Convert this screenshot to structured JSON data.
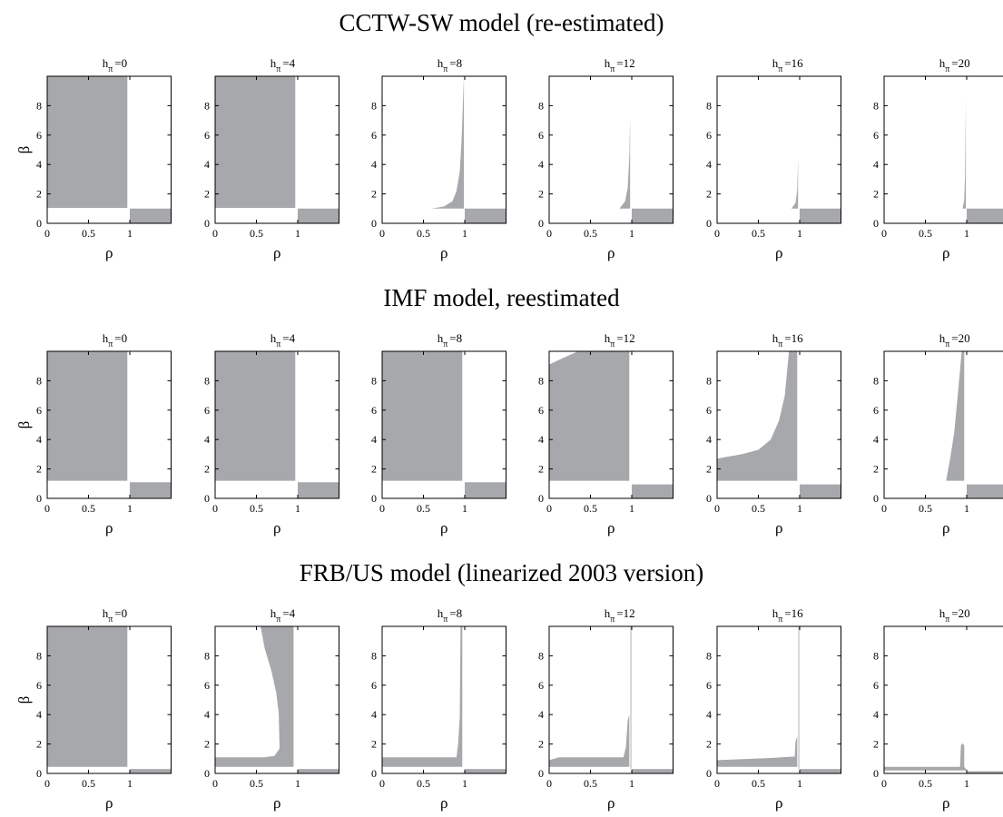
{
  "figure": {
    "rows": [
      {
        "title": "CCTW-SW model (re-estimated)"
      },
      {
        "title": "IMF model, reestimated"
      },
      {
        "title": "FRB/US model (linearized 2003 version)"
      }
    ],
    "region_color": "#a7a8ab"
  },
  "chart_data": {
    "type": "area",
    "description_of_values": "Shaded region of (rho, beta) parameter space for each model and inflation horizon h_pi",
    "xlabel": "ρ",
    "ylabel": "β",
    "xlim": [
      0,
      1.5
    ],
    "ylim": [
      0,
      10
    ],
    "xticks": [
      0,
      0.5,
      1
    ],
    "xtick_labels": [
      "0",
      "0.5",
      "1"
    ],
    "yticks": [
      0,
      2,
      4,
      6,
      8
    ],
    "ytick_labels": [
      "0",
      "2",
      "4",
      "6",
      "8"
    ],
    "grid": false,
    "panels": [
      {
        "row": 0,
        "model": "CCTW-SW model (re-estimated)",
        "h_pi": "0",
        "regions": [
          {
            "x": [
              0,
              0.97,
              0.97,
              0
            ],
            "y": [
              1.05,
              1.05,
              10,
              10
            ]
          },
          {
            "x": [
              1.0,
              1.5,
              1.5,
              1.0
            ],
            "y": [
              0,
              0,
              1.0,
              1.0
            ]
          }
        ]
      },
      {
        "row": 0,
        "model": "CCTW-SW model (re-estimated)",
        "h_pi": "4",
        "regions": [
          {
            "x": [
              0,
              0.97,
              0.97,
              0
            ],
            "y": [
              1.05,
              1.05,
              10,
              10
            ]
          },
          {
            "x": [
              1.0,
              1.5,
              1.5,
              1.0
            ],
            "y": [
              0,
              0,
              1.0,
              1.0
            ]
          }
        ]
      },
      {
        "row": 0,
        "model": "CCTW-SW model (re-estimated)",
        "h_pi": "8",
        "regions": [
          {
            "x": [
              0,
              0.6,
              0.75,
              0.85,
              0.9,
              0.94,
              0.96,
              0.98,
              0.99,
              0.99
            ],
            "y": [
              1.0,
              1.0,
              1.15,
              1.5,
              2.2,
              3.5,
              5.5,
              8.5,
              10,
              1.0
            ]
          },
          {
            "x": [
              1.0,
              1.5,
              1.5,
              1.0
            ],
            "y": [
              0,
              0,
              1.0,
              1.0
            ]
          }
        ]
      },
      {
        "row": 0,
        "model": "CCTW-SW model (re-estimated)",
        "h_pi": "12",
        "regions": [
          {
            "x": [
              0.85,
              0.92,
              0.95,
              0.97,
              0.98,
              0.98
            ],
            "y": [
              1.0,
              1.5,
              2.4,
              4.5,
              7.2,
              1.0
            ]
          },
          {
            "x": [
              1.0,
              1.5,
              1.5,
              1.0
            ],
            "y": [
              0,
              0,
              1.0,
              1.0
            ]
          }
        ]
      },
      {
        "row": 0,
        "model": "CCTW-SW model (re-estimated)",
        "h_pi": "16",
        "regions": [
          {
            "x": [
              0.9,
              0.95,
              0.97,
              0.98,
              0.98
            ],
            "y": [
              1.0,
              1.4,
              2.3,
              4.4,
              1.0
            ]
          },
          {
            "x": [
              1.0,
              1.5,
              1.5,
              1.0
            ],
            "y": [
              0,
              0,
              1.0,
              1.0
            ]
          }
        ]
      },
      {
        "row": 0,
        "model": "CCTW-SW model (re-estimated)",
        "h_pi": "20",
        "regions": [
          {
            "x": [
              0.95,
              0.97,
              0.98,
              0.99,
              0.99
            ],
            "y": [
              1.0,
              1.6,
              3.2,
              8.5,
              1.0
            ]
          },
          {
            "x": [
              1.0,
              1.5,
              1.5,
              1.0
            ],
            "y": [
              0,
              0,
              1.0,
              1.0
            ]
          }
        ]
      },
      {
        "row": 1,
        "model": "IMF model, reestimated",
        "h_pi": "0",
        "regions": [
          {
            "x": [
              0,
              0.97,
              0.97,
              0
            ],
            "y": [
              1.2,
              1.2,
              10,
              10
            ]
          },
          {
            "x": [
              1.0,
              1.5,
              1.5,
              1.0
            ],
            "y": [
              0,
              0,
              1.1,
              1.1
            ]
          }
        ]
      },
      {
        "row": 1,
        "model": "IMF model, reestimated",
        "h_pi": "4",
        "regions": [
          {
            "x": [
              0,
              0.97,
              0.97,
              0
            ],
            "y": [
              1.2,
              1.2,
              10,
              10
            ]
          },
          {
            "x": [
              1.0,
              1.5,
              1.5,
              1.0
            ],
            "y": [
              0,
              0,
              1.1,
              1.1
            ]
          }
        ]
      },
      {
        "row": 1,
        "model": "IMF model, reestimated",
        "h_pi": "8",
        "regions": [
          {
            "x": [
              0,
              0.97,
              0.97,
              0
            ],
            "y": [
              1.2,
              1.2,
              10,
              10
            ]
          },
          {
            "x": [
              1.0,
              1.5,
              1.5,
              1.0
            ],
            "y": [
              0,
              0,
              1.1,
              1.1
            ]
          }
        ]
      },
      {
        "row": 1,
        "model": "IMF model, reestimated",
        "h_pi": "12",
        "regions": [
          {
            "x": [
              0,
              0.97,
              0.97,
              0.35,
              0.15,
              0
            ],
            "y": [
              1.2,
              1.2,
              10,
              10,
              9.5,
              9.1
            ]
          },
          {
            "x": [
              1.0,
              1.5,
              1.5,
              1.0
            ],
            "y": [
              0,
              0,
              0.95,
              0.95
            ]
          }
        ]
      },
      {
        "row": 1,
        "model": "IMF model, reestimated",
        "h_pi": "16",
        "regions": [
          {
            "x": [
              0,
              0.97,
              0.97,
              0.87,
              0.82,
              0.75,
              0.65,
              0.5,
              0.3,
              0.15,
              0
            ],
            "y": [
              1.2,
              1.2,
              10,
              10,
              7,
              5.3,
              4.0,
              3.3,
              3.0,
              2.85,
              2.7
            ]
          },
          {
            "x": [
              1.0,
              1.5,
              1.5,
              1.0
            ],
            "y": [
              0,
              0,
              0.95,
              0.95
            ]
          }
        ]
      },
      {
        "row": 1,
        "model": "IMF model, reestimated",
        "h_pi": "20",
        "regions": [
          {
            "x": [
              0.75,
              0.97,
              0.97,
              0.94,
              0.9,
              0.85,
              0.8,
              0.77
            ],
            "y": [
              1.2,
              1.2,
              10,
              10,
              7.5,
              4.5,
              2.7,
              1.8
            ]
          },
          {
            "x": [
              1.0,
              1.5,
              1.5,
              1.0
            ],
            "y": [
              0,
              0,
              0.95,
              0.95
            ]
          }
        ]
      },
      {
        "row": 2,
        "model": "FRB/US model (linearized 2003 version)",
        "h_pi": "0",
        "regions": [
          {
            "x": [
              0,
              0.97,
              0.97,
              0
            ],
            "y": [
              0.45,
              0.45,
              10,
              10
            ]
          },
          {
            "x": [
              1.0,
              1.5,
              1.5,
              1.0
            ],
            "y": [
              0,
              0,
              0.3,
              0.3
            ]
          }
        ]
      },
      {
        "row": 2,
        "model": "FRB/US model (linearized 2003 version)",
        "h_pi": "4",
        "regions": [
          {
            "x": [
              0,
              0.95,
              0.95,
              0.55,
              0.6,
              0.68,
              0.74,
              0.77,
              0.78,
              0.72,
              0.6,
              0
            ],
            "y": [
              0.45,
              0.45,
              10,
              10,
              8.5,
              7,
              5.5,
              4.1,
              1.7,
              1.2,
              1.1,
              1.1
            ]
          },
          {
            "x": [
              1.0,
              1.5,
              1.5,
              1.0
            ],
            "y": [
              0,
              0,
              0.3,
              0.3
            ]
          }
        ]
      },
      {
        "row": 2,
        "model": "FRB/US model (linearized 2003 version)",
        "h_pi": "8",
        "regions": [
          {
            "x": [
              0,
              0.97,
              0.97,
              0.95,
              0.94,
              0.92,
              0.9,
              0
            ],
            "y": [
              0.45,
              0.45,
              10,
              10,
              3.8,
              2.0,
              1.1,
              1.1
            ]
          },
          {
            "x": [
              1.0,
              1.5,
              1.5,
              1.0
            ],
            "y": [
              0,
              0,
              0.3,
              0.3
            ]
          }
        ]
      },
      {
        "row": 2,
        "model": "FRB/US model (linearized 2003 version)",
        "h_pi": "12",
        "regions": [
          {
            "x": [
              0,
              0.97,
              0.97,
              0.95,
              0.93,
              0.9,
              0.12,
              0
            ],
            "y": [
              0.45,
              0.45,
              4.0,
              3.6,
              1.8,
              1.1,
              1.1,
              0.9
            ]
          },
          {
            "x": [
              1.0,
              1.5,
              1.5,
              1.0
            ],
            "y": [
              0,
              0,
              0.3,
              0.3
            ]
          },
          {
            "x": [
              0.985,
              0.995,
              0.995,
              0.985
            ],
            "y": [
              0.3,
              0.3,
              10,
              10
            ]
          }
        ]
      },
      {
        "row": 2,
        "model": "FRB/US model (linearized 2003 version)",
        "h_pi": "16",
        "regions": [
          {
            "x": [
              0,
              0.97,
              0.97,
              0.95,
              0.94,
              0.65,
              0
            ],
            "y": [
              0.45,
              0.45,
              2.5,
              2.2,
              1.15,
              1.05,
              0.9
            ]
          },
          {
            "x": [
              1.0,
              1.5,
              1.5,
              1.0
            ],
            "y": [
              0,
              0,
              0.3,
              0.3
            ]
          },
          {
            "x": [
              0.985,
              0.995,
              0.995,
              0.985
            ],
            "y": [
              0.3,
              0.3,
              10,
              10
            ]
          }
        ]
      },
      {
        "row": 2,
        "model": "FRB/US model (linearized 2003 version)",
        "h_pi": "20",
        "regions": [
          {
            "x": [
              0,
              0.92,
              0.93,
              0.95,
              0.97,
              0.97,
              1.0,
              0.98,
              0.9,
              0
            ],
            "y": [
              0.45,
              0.45,
              1.9,
              2.05,
              1.9,
              0.45,
              0.25,
              0.2,
              0.2,
              0.2
            ]
          },
          {
            "x": [
              1.0,
              1.5,
              1.5,
              1.0
            ],
            "y": [
              0,
              0,
              0.15,
              0.15
            ]
          }
        ]
      }
    ]
  }
}
